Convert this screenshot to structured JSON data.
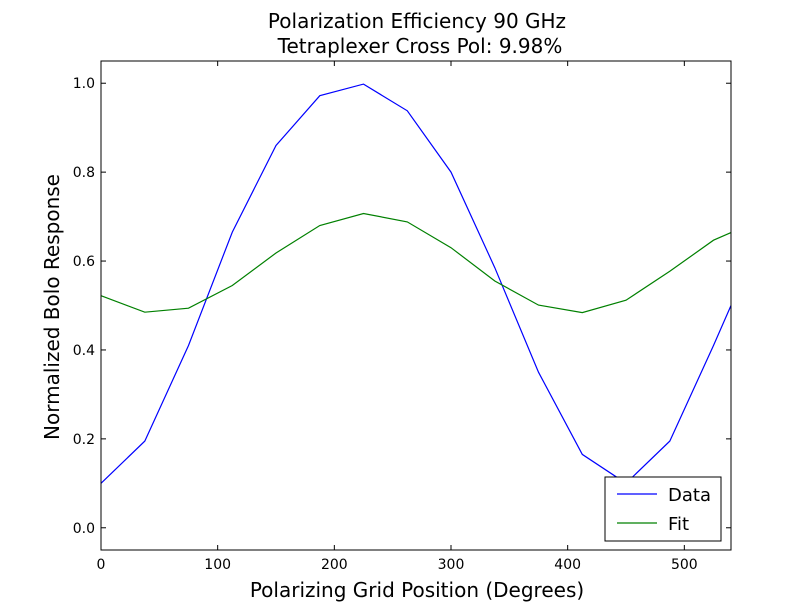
{
  "chart_data": {
    "type": "line",
    "title": "Polarization Efficiency 90 GHz",
    "subtitle": "Tetraplexer Cross Pol: 9.98%",
    "xlabel": "Polarizing Grid Position (Degrees)",
    "ylabel": "Normalized Bolo Response",
    "xlim": [
      0,
      540
    ],
    "ylim": [
      -0.05,
      1.05
    ],
    "xticks": [
      "0",
      "100",
      "200",
      "300",
      "400",
      "500"
    ],
    "yticks": [
      "0.0",
      "0.2",
      "0.4",
      "0.6",
      "0.8",
      "1.0"
    ],
    "grid": false,
    "legend_position": "lower-right",
    "series": [
      {
        "name": "Data",
        "color": "#0000ff",
        "x": [
          0,
          37.5,
          75,
          112.5,
          150,
          187.5,
          225,
          262.5,
          300,
          337.5,
          375,
          412.5,
          450,
          487.5,
          525,
          540
        ],
        "y": [
          0.1,
          0.195,
          0.41,
          0.665,
          0.86,
          0.972,
          0.998,
          0.938,
          0.8,
          0.585,
          0.35,
          0.165,
          0.1,
          0.195,
          0.41,
          0.5
        ]
      },
      {
        "name": "Fit",
        "color": "#008000",
        "x": [
          0,
          37.5,
          75,
          112.5,
          150,
          187.5,
          225,
          262.5,
          300,
          337.5,
          375,
          412.5,
          450,
          487.5,
          525,
          540
        ],
        "y": [
          0.522,
          0.485,
          0.494,
          0.545,
          0.618,
          0.68,
          0.707,
          0.688,
          0.63,
          0.555,
          0.501,
          0.484,
          0.512,
          0.577,
          0.647,
          0.664
        ]
      }
    ]
  }
}
